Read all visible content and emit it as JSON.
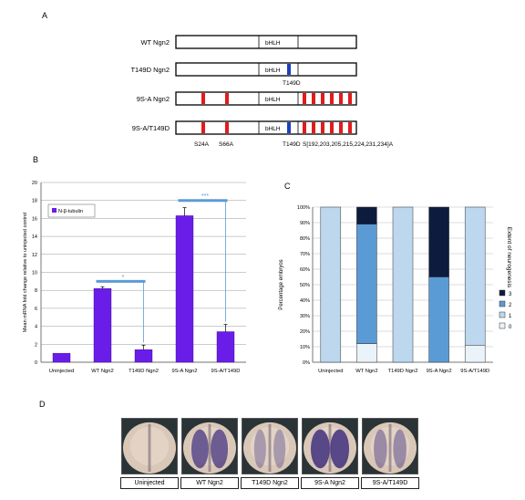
{
  "panels": {
    "a": "A",
    "b": "B",
    "c": "C",
    "d": "D"
  },
  "panel_a": {
    "constructs": [
      {
        "name": "WT Ngn2",
        "domain": "bHLH",
        "mutation_label": "",
        "t149": false,
        "ser_sites": false
      },
      {
        "name": "T149D Ngn2",
        "domain": "bHLH",
        "mutation_label": "T149D",
        "t149": true,
        "ser_sites": false
      },
      {
        "name": "9S-A Ngn2",
        "domain": "bHLH",
        "mutation_label": "",
        "t149": false,
        "ser_sites": true
      },
      {
        "name": "9S-A/T149D",
        "domain": "bHLH",
        "mutation_label": "",
        "t149": true,
        "ser_sites": true
      }
    ],
    "bottom_labels": {
      "s24": "S24A",
      "s66": "S66A",
      "t149": "T149D",
      "cluster": "S[192,203,205,215,224,231,234]A"
    },
    "colors": {
      "serine_sites": "#e21b1b",
      "t149d": "#1f3fbf"
    }
  },
  "chart_data": [
    {
      "type": "bar",
      "categories": [
        "Uninjected",
        "WT Ngn2",
        "T149D Ngn2",
        "9S-A Ngn2",
        "9S-A/T149D"
      ],
      "series": [
        {
          "name": "N-β-tubulin",
          "values": [
            1.0,
            8.2,
            1.4,
            16.3,
            3.4
          ],
          "errors": [
            0,
            0.2,
            0.5,
            0.9,
            0.8
          ]
        }
      ],
      "ylabel": "Mean mRNA fold change relative to uninjected control",
      "ylim": [
        0,
        20
      ],
      "yticks": [
        0,
        2,
        4,
        6,
        8,
        10,
        12,
        14,
        16,
        18,
        20
      ],
      "grid": true,
      "legend": "top-left",
      "bar_color": "#6a1de8",
      "significance": [
        {
          "from": "WT Ngn2",
          "to": "T149D Ngn2",
          "label": "*",
          "level": 9.0
        },
        {
          "from": "9S-A Ngn2",
          "to": "9S-A/T149D",
          "label": "***",
          "level": 18.0
        }
      ],
      "significance_color": "#5b9bd5"
    },
    {
      "type": "bar",
      "stacked": true,
      "categories": [
        "Uninjected",
        "WT Ngn2",
        "T149D Ngn2",
        "9S-A Ngn2",
        "9S-A/T149D"
      ],
      "series": [
        {
          "name": "0",
          "values": [
            0,
            12,
            0,
            0,
            11
          ],
          "color": "#eaf2fa"
        },
        {
          "name": "1",
          "values": [
            100,
            0,
            100,
            0,
            89
          ],
          "color": "#bdd7ee"
        },
        {
          "name": "2",
          "values": [
            0,
            77,
            0,
            55,
            0
          ],
          "color": "#5b9bd5"
        },
        {
          "name": "3",
          "values": [
            0,
            11,
            0,
            45,
            0
          ],
          "color": "#0d1b3e"
        }
      ],
      "ylabel": "Percentage embryos",
      "y2label": "Extent of neurogenesis",
      "ylim": [
        0,
        100
      ],
      "yticks": [
        "0%",
        "10%",
        "20%",
        "30%",
        "40%",
        "50%",
        "60%",
        "70%",
        "80%",
        "90%",
        "100%"
      ],
      "legend": "right",
      "legend_order": [
        "3",
        "2",
        "1",
        "0"
      ]
    }
  ],
  "panel_d": {
    "captions": [
      "Uninjected",
      "WT Ngn2",
      "T149D Ngn2",
      "9S-A Ngn2",
      "9S-A/T149D"
    ],
    "stain_level": [
      0,
      0.75,
      0.15,
      0.95,
      0.3
    ]
  }
}
